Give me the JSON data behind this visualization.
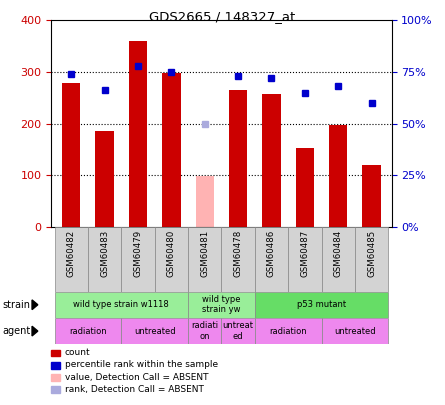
{
  "title": "GDS2665 / 148327_at",
  "samples": [
    "GSM60482",
    "GSM60483",
    "GSM60479",
    "GSM60480",
    "GSM60481",
    "GSM60478",
    "GSM60486",
    "GSM60487",
    "GSM60484",
    "GSM60485"
  ],
  "counts": [
    278,
    185,
    360,
    298,
    null,
    265,
    258,
    152,
    198,
    120
  ],
  "absent_count": 98,
  "absent_count_idx": 4,
  "percentile_ranks": [
    74,
    66,
    78,
    75,
    null,
    73,
    72,
    65,
    68,
    60
  ],
  "absent_rank": 50,
  "absent_rank_idx": 4,
  "bar_color": "#cc0000",
  "absent_bar_color": "#ffb3b3",
  "dot_color": "#0000cc",
  "absent_dot_color": "#aaaadd",
  "ylim_left": [
    0,
    400
  ],
  "ylim_right": [
    0,
    100
  ],
  "yticks_left": [
    0,
    100,
    200,
    300,
    400
  ],
  "yticks_right": [
    0,
    25,
    50,
    75,
    100
  ],
  "ytick_labels_right": [
    "0%",
    "25%",
    "50%",
    "75%",
    "100%"
  ],
  "bar_color_left": "#cc0000",
  "tick_color_left": "#cc0000",
  "tick_color_right": "#0000cc",
  "label_bg_color": "#d3d3d3",
  "strain_groups": [
    {
      "label": "wild type strain w1118",
      "start": 0,
      "end": 3,
      "color": "#99ee99"
    },
    {
      "label": "wild type\nstrain yw",
      "start": 4,
      "end": 5,
      "color": "#99ee99"
    },
    {
      "label": "p53 mutant",
      "start": 6,
      "end": 9,
      "color": "#66dd66"
    }
  ],
  "agent_groups": [
    {
      "label": "radiation",
      "start": 0,
      "end": 1,
      "color": "#ee88ee"
    },
    {
      "label": "untreated",
      "start": 2,
      "end": 3,
      "color": "#ee88ee"
    },
    {
      "label": "radiati\non",
      "start": 4,
      "end": 4,
      "color": "#ee88ee"
    },
    {
      "label": "untreat\ned",
      "start": 5,
      "end": 5,
      "color": "#ee88ee"
    },
    {
      "label": "radiation",
      "start": 6,
      "end": 7,
      "color": "#ee88ee"
    },
    {
      "label": "untreated",
      "start": 8,
      "end": 9,
      "color": "#ee88ee"
    }
  ],
  "legend_items": [
    {
      "label": "count",
      "color": "#cc0000"
    },
    {
      "label": "percentile rank within the sample",
      "color": "#0000cc"
    },
    {
      "label": "value, Detection Call = ABSENT",
      "color": "#ffb3b3"
    },
    {
      "label": "rank, Detection Call = ABSENT",
      "color": "#aaaadd"
    }
  ],
  "background_color": "#ffffff"
}
